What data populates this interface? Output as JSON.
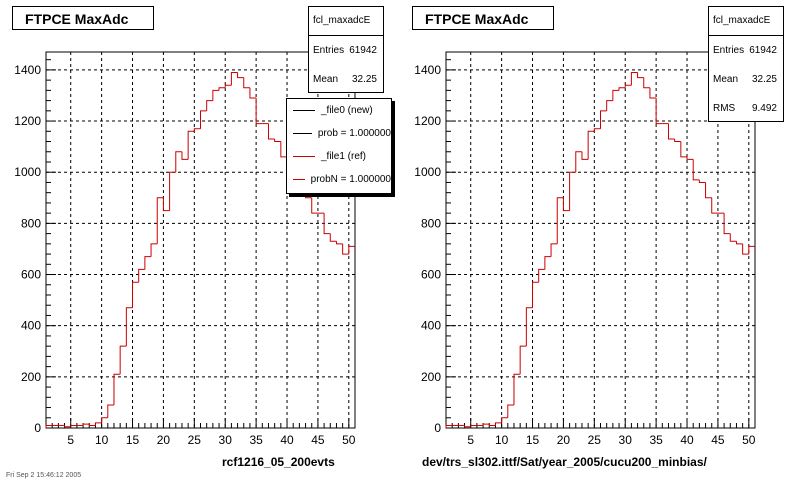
{
  "panels": [
    {
      "title": "FTPCE MaxAdc",
      "stats": {
        "name": "fcl_maxadcE",
        "rows": [
          {
            "label": "Entries",
            "value": "61942"
          },
          {
            "label": "Mean",
            "value": "32.25"
          }
        ]
      },
      "legend": [
        {
          "label": "_file0 (new)",
          "color": "#000000"
        },
        {
          "label": "prob = 1.000000",
          "color": "#000000"
        },
        {
          "label": "_file1 (ref)",
          "color": "#cc0000"
        },
        {
          "label": "probN = 1.000000",
          "color": "#cc0000"
        }
      ],
      "caption": "rcf1216_05_200evts"
    },
    {
      "title": "FTPCE MaxAdc",
      "stats": {
        "name": "fcl_maxadcE",
        "rows": [
          {
            "label": "Entries",
            "value": "61942"
          },
          {
            "label": "Mean",
            "value": "32.25"
          },
          {
            "label": "RMS",
            "value": "9.492"
          }
        ]
      },
      "legend": [],
      "caption": "dev/trs_sl302.ittf/Sat/year_2005/cucu200_minbias/"
    }
  ],
  "timestamp": "Fri Sep 2 15:46:12 2005",
  "colors": {
    "histogram": "#cc0000",
    "axis": "#000000",
    "grid": "#000000"
  },
  "chart_data": {
    "type": "bar",
    "title": "FTPCE MaxAdc",
    "xlim": [
      1,
      51
    ],
    "ylim": [
      0,
      1470
    ],
    "grid": true,
    "x_ticks": [
      5,
      10,
      15,
      20,
      25,
      30,
      35,
      40,
      45,
      50
    ],
    "y_ticks": [
      0,
      200,
      400,
      600,
      800,
      1000,
      1200,
      1400
    ],
    "bin_edges_start": 1,
    "bin_width": 1,
    "series": [
      {
        "name": "_file1 (ref)",
        "values": [
          10,
          10,
          10,
          5,
          10,
          10,
          15,
          10,
          20,
          40,
          90,
          210,
          320,
          470,
          570,
          620,
          670,
          720,
          900,
          850,
          1000,
          1080,
          1050,
          1160,
          1170,
          1240,
          1280,
          1320,
          1330,
          1340,
          1390,
          1370,
          1330,
          1290,
          1190,
          1190,
          1130,
          1120,
          1060,
          1050,
          970,
          960,
          900,
          840,
          840,
          760,
          730,
          720,
          680,
          710
        ]
      }
    ]
  }
}
